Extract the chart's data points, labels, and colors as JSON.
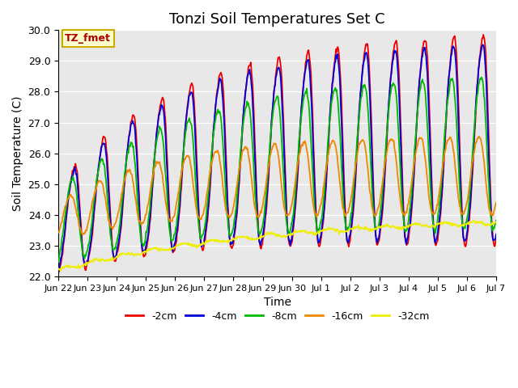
{
  "title": "Tonzi Soil Temperatures Set C",
  "xlabel": "Time",
  "ylabel": "Soil Temperature (C)",
  "ylim": [
    22.0,
    30.0
  ],
  "yticks": [
    22.0,
    23.0,
    24.0,
    25.0,
    26.0,
    27.0,
    28.0,
    29.0,
    30.0
  ],
  "legend_labels": [
    "-2cm",
    "-4cm",
    "-8cm",
    "-16cm",
    "-32cm"
  ],
  "legend_colors": [
    "#ee0000",
    "#0000dd",
    "#00bb00",
    "#ee8800",
    "#eeee00"
  ],
  "annotation_text": "TZ_fmet",
  "annotation_color": "#aa0000",
  "annotation_bg": "#ffffcc",
  "annotation_edge": "#ccaa00",
  "background_color": "#e8e8e8",
  "line_width": 1.3,
  "n_points": 720,
  "end_day": 15.0,
  "x_tick_labels": [
    "Jun 22",
    "Jun 23",
    "Jun 24",
    "Jun 25",
    "Jun 26",
    "Jun 27",
    "Jun 28",
    "Jun 29",
    "Jun 30",
    "Jul 1",
    "Jul 2",
    "Jul 3",
    "Jul 4",
    "Jul 5",
    "Jul 6",
    "Jul 7"
  ],
  "x_tick_positions": [
    0,
    1,
    2,
    3,
    4,
    5,
    6,
    7,
    8,
    9,
    10,
    11,
    12,
    13,
    14,
    15
  ]
}
